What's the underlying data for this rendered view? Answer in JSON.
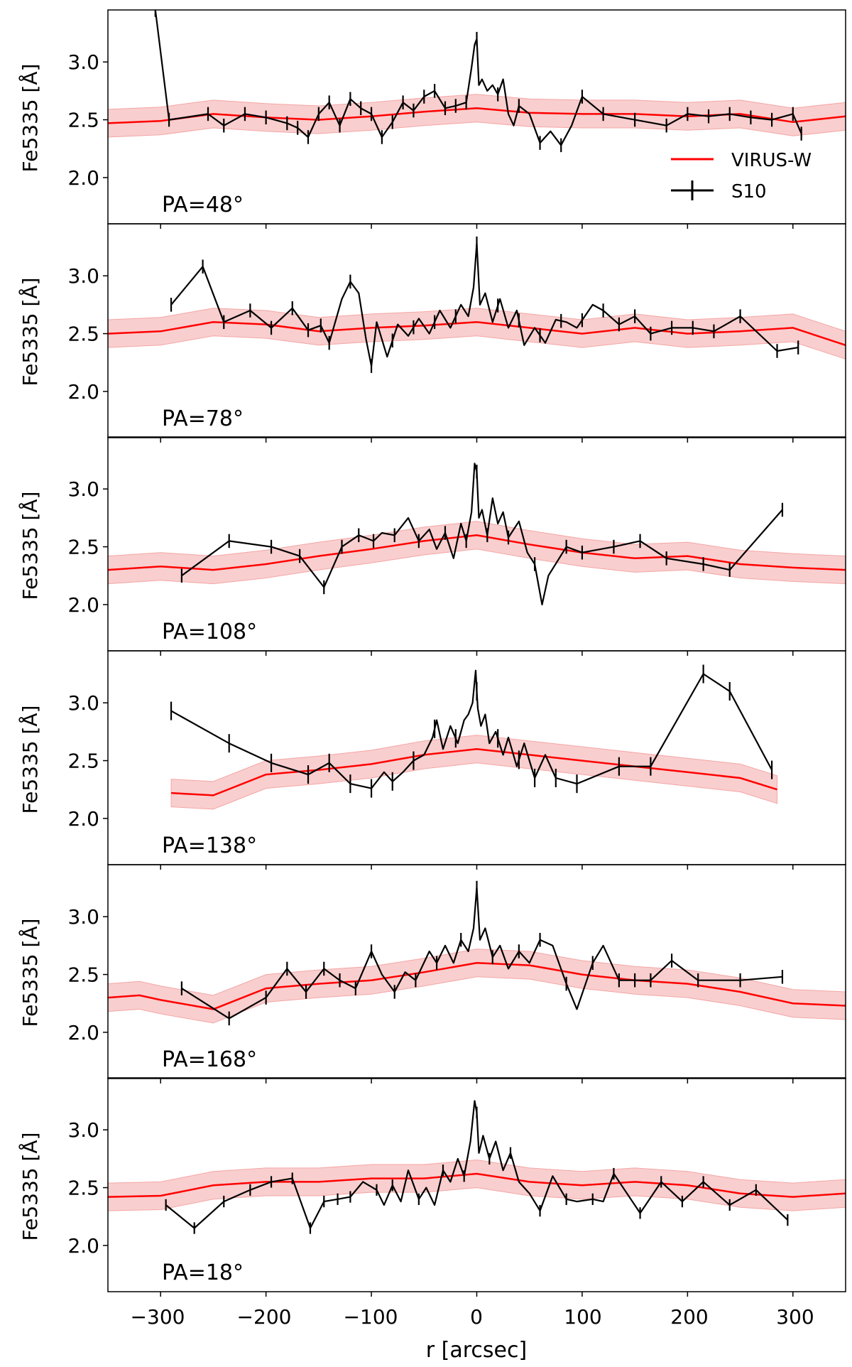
{
  "chart_data": {
    "type": "line",
    "xlabel": "r [arcsec]",
    "ylabel": "Fe5335 [Å]",
    "xlim": [
      -350,
      350
    ],
    "ylim": [
      1.6,
      3.45
    ],
    "xticks": [
      -300,
      -200,
      -100,
      0,
      100,
      200,
      300
    ],
    "xtick_labels": [
      "−300",
      "−200",
      "−100",
      "0",
      "100",
      "200",
      "300"
    ],
    "yticks": [
      2.0,
      2.5,
      3.0
    ],
    "ytick_labels": [
      "2.0",
      "2.5",
      "3.0"
    ],
    "legend": {
      "position": "right",
      "entries": [
        "VIRUS-W",
        "S10"
      ]
    },
    "colors": {
      "virus_line": "#ff0000",
      "virus_band": "#f4a6a6",
      "s10": "#000000"
    },
    "panels": [
      {
        "label": "PA=48°",
        "virus_w": {
          "x": [
            -350,
            -300,
            -250,
            -200,
            -150,
            -100,
            -50,
            0,
            50,
            100,
            150,
            200,
            250,
            300,
            350
          ],
          "y": [
            2.47,
            2.49,
            2.55,
            2.52,
            2.5,
            2.53,
            2.57,
            2.6,
            2.56,
            2.55,
            2.55,
            2.53,
            2.55,
            2.48,
            2.53
          ],
          "band": 0.12
        },
        "s10": {
          "x": [
            -305,
            -292,
            -255,
            -240,
            -220,
            -200,
            -180,
            -170,
            -160,
            -150,
            -140,
            -130,
            -120,
            -110,
            -100,
            -90,
            -80,
            -70,
            -60,
            -50,
            -40,
            -30,
            -20,
            -10,
            -5,
            -2,
            0,
            2,
            5,
            10,
            15,
            20,
            25,
            30,
            35,
            40,
            50,
            60,
            70,
            80,
            90,
            100,
            120,
            150,
            180,
            200,
            220,
            240,
            260,
            280,
            300,
            308
          ],
          "y": [
            3.45,
            2.5,
            2.55,
            2.45,
            2.55,
            2.52,
            2.47,
            2.43,
            2.35,
            2.55,
            2.65,
            2.45,
            2.68,
            2.6,
            2.55,
            2.35,
            2.48,
            2.65,
            2.58,
            2.7,
            2.75,
            2.6,
            2.62,
            2.65,
            2.95,
            3.15,
            3.2,
            2.8,
            2.85,
            2.75,
            2.8,
            2.72,
            2.85,
            2.55,
            2.45,
            2.62,
            2.55,
            2.3,
            2.4,
            2.28,
            2.45,
            2.7,
            2.55,
            2.5,
            2.45,
            2.55,
            2.53,
            2.55,
            2.52,
            2.5,
            2.55,
            2.38
          ],
          "err_x": [
            -305,
            -292,
            -255,
            -240,
            -220,
            -200,
            -180,
            -170,
            -160,
            -150,
            -140,
            -130,
            -120,
            -110,
            -100,
            -90,
            -80,
            -70,
            -60,
            -50,
            -40,
            -30,
            -20,
            -10,
            0,
            20,
            40,
            60,
            80,
            100,
            120,
            150,
            180,
            200,
            220,
            240,
            260,
            280,
            300,
            308
          ],
          "err": 0.06
        }
      },
      {
        "label": "PA=78°",
        "virus_w": {
          "x": [
            -350,
            -300,
            -250,
            -200,
            -150,
            -100,
            -50,
            0,
            50,
            100,
            150,
            200,
            250,
            300,
            350
          ],
          "y": [
            2.5,
            2.52,
            2.6,
            2.58,
            2.52,
            2.55,
            2.57,
            2.6,
            2.55,
            2.5,
            2.55,
            2.5,
            2.52,
            2.55,
            2.4
          ],
          "band": 0.12
        },
        "s10": {
          "x": [
            -290,
            -260,
            -240,
            -215,
            -195,
            -175,
            -160,
            -148,
            -140,
            -128,
            -120,
            -112,
            -105,
            -100,
            -95,
            -85,
            -75,
            -65,
            -55,
            -45,
            -35,
            -25,
            -15,
            -8,
            -3,
            0,
            3,
            8,
            15,
            22,
            30,
            38,
            45,
            55,
            65,
            75,
            85,
            95,
            110,
            120,
            135,
            150,
            165,
            185,
            205,
            225,
            250,
            285,
            305
          ],
          "y": [
            2.75,
            3.08,
            2.6,
            2.7,
            2.55,
            2.72,
            2.53,
            2.57,
            2.42,
            2.8,
            2.95,
            2.85,
            2.45,
            2.22,
            2.6,
            2.3,
            2.58,
            2.48,
            2.63,
            2.5,
            2.7,
            2.55,
            2.75,
            2.65,
            2.9,
            3.28,
            2.75,
            2.85,
            2.6,
            2.8,
            2.55,
            2.7,
            2.4,
            2.55,
            2.42,
            2.62,
            2.6,
            2.55,
            2.75,
            2.7,
            2.58,
            2.65,
            2.5,
            2.55,
            2.55,
            2.52,
            2.65,
            2.35,
            2.38
          ],
          "err_x": [
            -290,
            -260,
            -240,
            -215,
            -195,
            -175,
            -160,
            -148,
            -140,
            -120,
            -100,
            -80,
            -60,
            -40,
            -20,
            0,
            20,
            40,
            60,
            80,
            100,
            120,
            135,
            150,
            165,
            185,
            205,
            225,
            250,
            285,
            305
          ],
          "err": 0.06
        }
      },
      {
        "label": "PA=108°",
        "virus_w": {
          "x": [
            -350,
            -300,
            -250,
            -200,
            -150,
            -100,
            -50,
            0,
            50,
            100,
            150,
            200,
            250,
            300,
            350
          ],
          "y": [
            2.3,
            2.33,
            2.3,
            2.35,
            2.42,
            2.48,
            2.55,
            2.6,
            2.52,
            2.45,
            2.4,
            2.42,
            2.35,
            2.32,
            2.3
          ],
          "band": 0.12
        },
        "s10": {
          "x": [
            -280,
            -235,
            -195,
            -168,
            -145,
            -128,
            -112,
            -98,
            -90,
            -78,
            -65,
            -55,
            -45,
            -38,
            -30,
            -22,
            -15,
            -10,
            -5,
            -2,
            0,
            2,
            5,
            10,
            15,
            20,
            25,
            30,
            40,
            48,
            55,
            62,
            68,
            85,
            100,
            130,
            155,
            180,
            215,
            240,
            290
          ],
          "y": [
            2.25,
            2.55,
            2.5,
            2.42,
            2.15,
            2.5,
            2.6,
            2.55,
            2.62,
            2.6,
            2.75,
            2.55,
            2.65,
            2.48,
            2.62,
            2.4,
            2.7,
            2.55,
            2.8,
            3.22,
            3.15,
            2.75,
            2.82,
            2.6,
            2.92,
            2.7,
            2.8,
            2.58,
            2.72,
            2.45,
            2.35,
            2.0,
            2.25,
            2.5,
            2.45,
            2.5,
            2.55,
            2.4,
            2.35,
            2.3,
            2.82
          ],
          "err_x": [
            -280,
            -235,
            -195,
            -168,
            -145,
            -128,
            -112,
            -98,
            -78,
            -55,
            -30,
            -10,
            0,
            10,
            30,
            55,
            85,
            100,
            130,
            155,
            180,
            215,
            240,
            290
          ],
          "err": 0.06
        }
      },
      {
        "label": "PA=138°",
        "virus_w": {
          "x": [
            -290,
            -250,
            -200,
            -150,
            -100,
            -50,
            0,
            50,
            100,
            150,
            200,
            250,
            285
          ],
          "y": [
            2.22,
            2.2,
            2.38,
            2.42,
            2.47,
            2.55,
            2.6,
            2.55,
            2.5,
            2.45,
            2.4,
            2.35,
            2.25
          ],
          "band": 0.12
        },
        "s10": {
          "x": [
            -290,
            -235,
            -195,
            -160,
            -140,
            -120,
            -100,
            -88,
            -80,
            -70,
            -60,
            -50,
            -42,
            -38,
            -32,
            -25,
            -18,
            -12,
            -8,
            -4,
            -1,
            0,
            1,
            4,
            8,
            12,
            18,
            25,
            30,
            38,
            45,
            55,
            65,
            75,
            95,
            135,
            165,
            215,
            240,
            280
          ],
          "y": [
            2.93,
            2.65,
            2.48,
            2.38,
            2.48,
            2.3,
            2.26,
            2.4,
            2.32,
            2.4,
            2.5,
            2.55,
            2.7,
            2.85,
            2.6,
            2.8,
            2.65,
            2.85,
            2.9,
            3.0,
            3.28,
            3.1,
            2.95,
            2.8,
            2.9,
            2.65,
            2.75,
            2.55,
            2.7,
            2.45,
            2.65,
            2.35,
            2.55,
            2.35,
            2.3,
            2.45,
            2.45,
            3.25,
            3.1,
            2.42
          ],
          "err_x": [
            -290,
            -235,
            -195,
            -160,
            -140,
            -120,
            -100,
            -80,
            -60,
            -40,
            -20,
            0,
            20,
            40,
            55,
            75,
            95,
            135,
            165,
            215,
            240,
            280
          ],
          "err": 0.08
        }
      },
      {
        "label": "PA=168°",
        "virus_w": {
          "x": [
            -350,
            -320,
            -300,
            -250,
            -200,
            -150,
            -100,
            -50,
            0,
            50,
            100,
            150,
            200,
            250,
            300,
            350
          ],
          "y": [
            2.3,
            2.32,
            2.28,
            2.2,
            2.38,
            2.42,
            2.45,
            2.52,
            2.6,
            2.58,
            2.5,
            2.45,
            2.42,
            2.35,
            2.25,
            2.23
          ],
          "band": 0.12
        },
        "s10": {
          "x": [
            -280,
            -235,
            -200,
            -180,
            -162,
            -145,
            -130,
            -115,
            -100,
            -90,
            -78,
            -68,
            -58,
            -45,
            -38,
            -30,
            -22,
            -15,
            -8,
            -3,
            0,
            3,
            8,
            15,
            22,
            30,
            40,
            50,
            60,
            72,
            85,
            95,
            110,
            120,
            135,
            150,
            165,
            185,
            210,
            250,
            290
          ],
          "y": [
            2.38,
            2.12,
            2.3,
            2.55,
            2.35,
            2.55,
            2.45,
            2.38,
            2.7,
            2.5,
            2.35,
            2.52,
            2.45,
            2.7,
            2.6,
            2.75,
            2.6,
            2.8,
            2.7,
            2.9,
            3.25,
            2.8,
            2.9,
            2.65,
            2.75,
            2.55,
            2.7,
            2.6,
            2.8,
            2.75,
            2.42,
            2.2,
            2.6,
            2.75,
            2.45,
            2.45,
            2.45,
            2.62,
            2.45,
            2.45,
            2.48
          ],
          "err_x": [
            -280,
            -235,
            -200,
            -180,
            -162,
            -145,
            -130,
            -115,
            -100,
            -78,
            -58,
            -38,
            -15,
            0,
            15,
            40,
            60,
            85,
            110,
            135,
            150,
            165,
            185,
            210,
            250,
            290
          ],
          "err": 0.06
        }
      },
      {
        "label": "PA=18°",
        "virus_w": {
          "x": [
            -350,
            -300,
            -250,
            -200,
            -150,
            -100,
            -50,
            0,
            50,
            100,
            150,
            200,
            250,
            300,
            350
          ],
          "y": [
            2.42,
            2.43,
            2.52,
            2.55,
            2.55,
            2.58,
            2.58,
            2.62,
            2.55,
            2.52,
            2.55,
            2.52,
            2.45,
            2.42,
            2.45
          ],
          "band": 0.12
        },
        "s10": {
          "x": [
            -295,
            -268,
            -240,
            -215,
            -195,
            -175,
            -158,
            -145,
            -132,
            -120,
            -108,
            -95,
            -88,
            -80,
            -72,
            -65,
            -55,
            -48,
            -40,
            -32,
            -25,
            -18,
            -12,
            -6,
            -2,
            0,
            2,
            6,
            12,
            18,
            25,
            32,
            40,
            50,
            60,
            72,
            85,
            95,
            110,
            120,
            130,
            155,
            175,
            195,
            215,
            240,
            265,
            295
          ],
          "y": [
            2.35,
            2.15,
            2.38,
            2.48,
            2.55,
            2.58,
            2.15,
            2.38,
            2.4,
            2.42,
            2.55,
            2.48,
            2.35,
            2.52,
            2.38,
            2.65,
            2.4,
            2.5,
            2.35,
            2.65,
            2.55,
            2.75,
            2.6,
            2.9,
            3.25,
            3.15,
            2.8,
            2.95,
            2.75,
            2.9,
            2.65,
            2.8,
            2.55,
            2.45,
            2.3,
            2.6,
            2.4,
            2.38,
            2.4,
            2.38,
            2.62,
            2.28,
            2.55,
            2.38,
            2.55,
            2.35,
            2.48,
            2.22
          ],
          "err_x": [
            -295,
            -268,
            -240,
            -215,
            -195,
            -175,
            -158,
            -145,
            -132,
            -120,
            -95,
            -80,
            -55,
            -32,
            -12,
            0,
            12,
            32,
            60,
            85,
            110,
            130,
            155,
            175,
            195,
            215,
            240,
            265,
            295
          ],
          "err": 0.05
        }
      }
    ]
  }
}
